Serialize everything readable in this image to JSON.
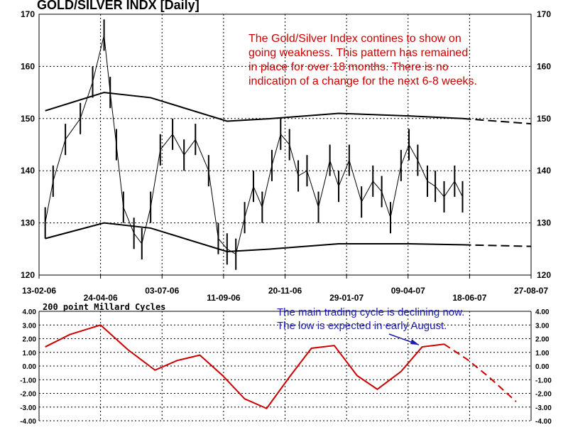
{
  "chart_data": [
    {
      "type": "line",
      "title": "GOLD/SILVER INDX  [Daily]",
      "annotation": [
        "The Gold/Silver Index contines to show on",
        "going weakness.  This pattern has remained",
        "in place for over 18 months.  There is no",
        "indication of a change for the next 6-8 weeks."
      ],
      "ylim": [
        120,
        170
      ],
      "yticks": [
        120,
        130,
        140,
        150,
        160,
        170
      ],
      "x_ticks_upper": [
        "13-02-06",
        "03-07-06",
        "20-11-06",
        "09-04-07",
        "27-08-07"
      ],
      "x_ticks_lower": [
        "24-04-06",
        "11-09-06",
        "29-01-07",
        "18-06-07"
      ],
      "grid": true,
      "series": [
        {
          "name": "",
          "style": "high-low bars",
          "x": [
            "2006-02-20",
            "2006-03-01",
            "2006-03-15",
            "2006-04-01",
            "2006-04-15",
            "2006-04-28",
            "2006-05-05",
            "2006-05-12",
            "2006-05-20",
            "2006-06-01",
            "2006-06-10",
            "2006-06-20",
            "2006-07-01",
            "2006-07-15",
            "2006-07-28",
            "2006-08-10",
            "2006-08-25",
            "2006-09-05",
            "2006-09-15",
            "2006-09-25",
            "2006-10-05",
            "2006-10-15",
            "2006-10-25",
            "2006-11-05",
            "2006-11-15",
            "2006-11-25",
            "2006-12-05",
            "2006-12-15",
            "2006-12-28",
            "2007-01-10",
            "2007-01-20",
            "2007-02-01",
            "2007-02-15",
            "2007-02-28",
            "2007-03-10",
            "2007-03-20",
            "2007-04-01",
            "2007-04-10",
            "2007-04-20",
            "2007-05-01",
            "2007-05-10",
            "2007-05-20",
            "2007-06-01",
            "2007-06-10"
          ],
          "values": [
            130,
            138,
            146,
            150,
            157,
            166,
            155,
            145,
            133,
            128,
            126,
            133,
            144,
            147,
            143,
            146,
            140,
            127,
            125,
            124,
            131,
            137,
            133,
            141,
            147,
            145,
            139,
            140,
            133,
            142,
            137,
            142,
            134,
            138,
            136,
            131,
            141,
            145,
            142,
            138,
            137,
            135,
            138,
            135
          ]
        },
        {
          "name": "",
          "style": "envelope upper",
          "x": [
            "2006-02-20",
            "2006-04-28",
            "2006-06-20",
            "2006-09-15",
            "2006-11-05",
            "2007-01-20",
            "2007-04-10",
            "2007-06-10",
            "2007-08-27"
          ],
          "values": [
            151.5,
            155,
            154,
            149.5,
            150,
            151,
            150.5,
            150,
            149
          ]
        },
        {
          "name": "",
          "style": "envelope lower",
          "x": [
            "2006-02-20",
            "2006-04-28",
            "2006-06-20",
            "2006-09-15",
            "2006-11-05",
            "2007-01-20",
            "2007-04-10",
            "2007-06-10",
            "2007-08-27"
          ],
          "values": [
            127,
            130,
            129,
            124.5,
            125,
            126,
            126,
            125.8,
            125.5
          ]
        }
      ]
    },
    {
      "type": "line",
      "title": "200 point Millard Cycles",
      "annotation": [
        "The main trading cycle is declining now.",
        "The low is expected in early August."
      ],
      "ylim": [
        -4,
        4
      ],
      "yticks": [
        "4.00",
        "3.00",
        "2.00",
        "1.00",
        "0.00",
        "-1.00",
        "-2.00",
        "-3.00",
        "-4.00"
      ],
      "grid": true,
      "colors": {
        "cycle": "#cc0000",
        "annotation": "#1a1aaa",
        "annotation_top": "#cc0000"
      },
      "series": [
        {
          "name": "",
          "x": [
            "2006-02-20",
            "2006-03-20",
            "2006-04-24",
            "2006-05-25",
            "2006-06-25",
            "2006-07-20",
            "2006-08-15",
            "2006-09-10",
            "2006-10-05",
            "2006-10-30",
            "2006-11-25",
            "2006-12-20",
            "2007-01-15",
            "2007-02-10",
            "2007-03-05",
            "2007-04-01",
            "2007-04-25",
            "2007-05-20",
            "2007-06-15",
            "2007-07-10",
            "2007-08-10"
          ],
          "values": [
            1.4,
            2.3,
            3.0,
            1.2,
            -0.3,
            0.4,
            0.8,
            -0.7,
            -2.4,
            -3.1,
            -0.8,
            1.3,
            1.5,
            -0.7,
            -1.7,
            -0.4,
            1.4,
            1.6,
            0.5,
            -0.8,
            -2.6
          ]
        }
      ]
    }
  ]
}
